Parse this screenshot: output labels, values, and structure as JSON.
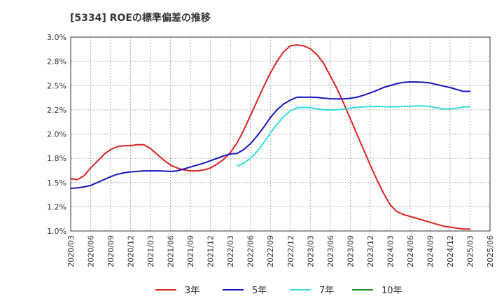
{
  "chart_data": {
    "type": "line",
    "title": "[5334]  ROEの標準偏差の推移",
    "xlabel": "",
    "ylabel": "",
    "ylim": [
      1.0,
      3.0
    ],
    "yticks": [
      "1.0%",
      "1.2%",
      "1.5%",
      "1.8%",
      "2.0%",
      "2.2%",
      "2.5%",
      "2.8%",
      "3.0%"
    ],
    "ytick_values": [
      1.0,
      1.25,
      1.5,
      1.75,
      2.0,
      2.25,
      2.5,
      2.75,
      3.0
    ],
    "xticks": [
      "2020/03",
      "2020/06",
      "2020/09",
      "2020/12",
      "2021/03",
      "2021/06",
      "2021/09",
      "2021/12",
      "2022/03",
      "2022/06",
      "2022/09",
      "2022/12",
      "2023/03",
      "2023/06",
      "2023/09",
      "2023/12",
      "2024/03",
      "2024/06",
      "2024/09",
      "2024/12",
      "2025/03",
      "2025/06"
    ],
    "x_range": [
      0,
      63
    ],
    "series": [
      {
        "name": "3年",
        "color": "#dd2222",
        "x": [
          0,
          1,
          2,
          3,
          4,
          5,
          6,
          7,
          8,
          9,
          10,
          11,
          12,
          13,
          14,
          15,
          16,
          17,
          18,
          19,
          20,
          21,
          22,
          23,
          24,
          25,
          26,
          27,
          28,
          29,
          30,
          31,
          32,
          33,
          34,
          35,
          36,
          37,
          38,
          39,
          40,
          41,
          42,
          43,
          44,
          45,
          46,
          47,
          48,
          49,
          50,
          51,
          52,
          53,
          54,
          55,
          56,
          57,
          58,
          59,
          60
        ],
        "values": [
          1.54,
          1.53,
          1.57,
          1.65,
          1.72,
          1.79,
          1.84,
          1.87,
          1.88,
          1.88,
          1.89,
          1.89,
          1.85,
          1.79,
          1.73,
          1.68,
          1.65,
          1.63,
          1.62,
          1.62,
          1.63,
          1.65,
          1.69,
          1.74,
          1.81,
          1.91,
          2.04,
          2.19,
          2.34,
          2.49,
          2.63,
          2.75,
          2.85,
          2.91,
          2.92,
          2.91,
          2.88,
          2.82,
          2.73,
          2.6,
          2.47,
          2.32,
          2.16,
          2.0,
          1.84,
          1.68,
          1.53,
          1.39,
          1.27,
          1.2,
          1.17,
          1.15,
          1.13,
          1.11,
          1.09,
          1.07,
          1.05,
          1.04,
          1.03,
          1.02,
          1.02
        ]
      },
      {
        "name": "5年",
        "color": "#1515bb",
        "x": [
          0,
          1,
          2,
          3,
          4,
          5,
          6,
          7,
          8,
          9,
          10,
          11,
          12,
          13,
          14,
          15,
          16,
          17,
          18,
          19,
          20,
          21,
          22,
          23,
          24,
          25,
          26,
          27,
          28,
          29,
          30,
          31,
          32,
          33,
          34,
          35,
          36,
          37,
          38,
          39,
          40,
          41,
          42,
          43,
          44,
          45,
          46,
          47,
          48,
          49,
          50,
          51,
          52,
          53,
          54,
          55,
          56,
          57,
          58,
          59,
          60
        ],
        "values": [
          1.44,
          1.445,
          1.455,
          1.47,
          1.5,
          1.53,
          1.56,
          1.585,
          1.6,
          1.61,
          1.615,
          1.62,
          1.62,
          1.62,
          1.618,
          1.615,
          1.62,
          1.64,
          1.66,
          1.68,
          1.7,
          1.725,
          1.75,
          1.775,
          1.795,
          1.8,
          1.84,
          1.9,
          1.98,
          2.07,
          2.17,
          2.25,
          2.31,
          2.35,
          2.38,
          2.38,
          2.38,
          2.378,
          2.37,
          2.365,
          2.362,
          2.364,
          2.368,
          2.38,
          2.4,
          2.425,
          2.45,
          2.48,
          2.5,
          2.52,
          2.533,
          2.538,
          2.537,
          2.534,
          2.527,
          2.51,
          2.495,
          2.48,
          2.46,
          2.44,
          2.44
        ]
      },
      {
        "name": "7年",
        "color": "#33dddd",
        "x": [
          25,
          26,
          27,
          28,
          29,
          30,
          31,
          32,
          33,
          34,
          35,
          36,
          37,
          38,
          39,
          40,
          41,
          42,
          43,
          44,
          45,
          46,
          47,
          48,
          49,
          50,
          51,
          52,
          53,
          54,
          55,
          56,
          57,
          58,
          59,
          60
        ],
        "values": [
          1.67,
          1.7,
          1.75,
          1.82,
          1.91,
          2.01,
          2.1,
          2.18,
          2.24,
          2.27,
          2.275,
          2.27,
          2.26,
          2.25,
          2.248,
          2.25,
          2.258,
          2.265,
          2.275,
          2.28,
          2.283,
          2.285,
          2.283,
          2.28,
          2.282,
          2.285,
          2.287,
          2.29,
          2.29,
          2.285,
          2.27,
          2.26,
          2.26,
          2.265,
          2.28,
          2.28
        ]
      },
      {
        "name": "10年",
        "color": "#228822",
        "x": [],
        "values": []
      }
    ],
    "legend_position": "bottom-center",
    "grid": true
  }
}
